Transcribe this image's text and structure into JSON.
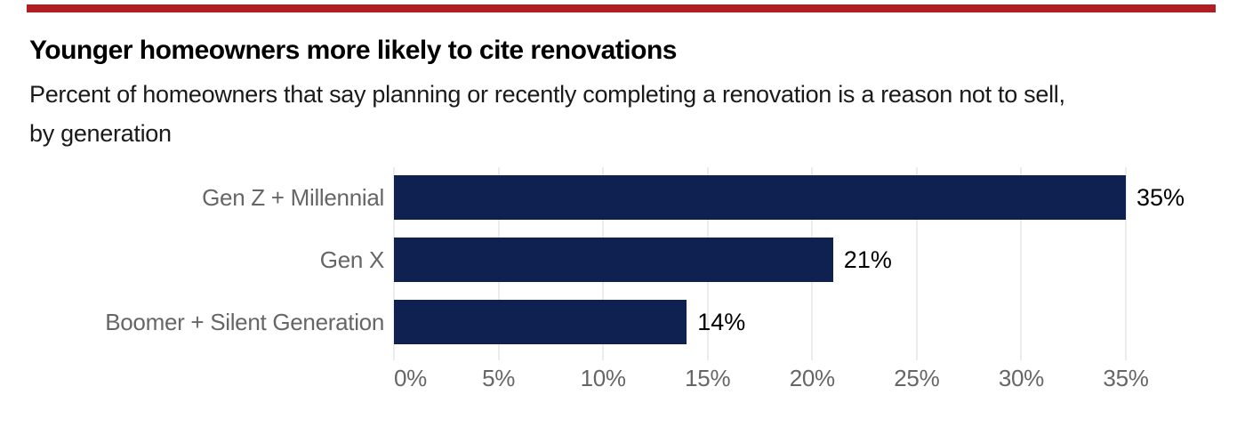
{
  "accent_rule": {
    "color": "#B01E24"
  },
  "header": {
    "title": "Younger homeowners more likely to cite renovations",
    "subtitle": "Percent of homeowners that say planning or recently completing a renovation is a reason not to sell, by generation"
  },
  "chart_data": {
    "type": "bar",
    "orientation": "horizontal",
    "title": "Younger homeowners more likely to cite renovations",
    "subtitle": "Percent of homeowners that say planning or recently completing a renovation is a reason not to sell, by generation",
    "categories": [
      "Gen Z + Millennial",
      "Gen X",
      "Boomer + Silent Generation"
    ],
    "values": [
      35,
      21,
      14
    ],
    "value_labels": [
      "35%",
      "21%",
      "14%"
    ],
    "xlabel": "",
    "ylabel": "",
    "xlim": [
      0,
      35
    ],
    "xticks": [
      0,
      5,
      10,
      15,
      20,
      25,
      30,
      35
    ],
    "xtick_labels": [
      "0%",
      "5%",
      "10%",
      "15%",
      "20%",
      "25%",
      "30%",
      "35%"
    ],
    "grid": "vertical-light",
    "legend": "none",
    "colors": {
      "bar": "#0E2150",
      "category_label": "#666666",
      "value_label": "#000000",
      "tick_label": "#666666",
      "gridline": "#ECECEC"
    }
  }
}
